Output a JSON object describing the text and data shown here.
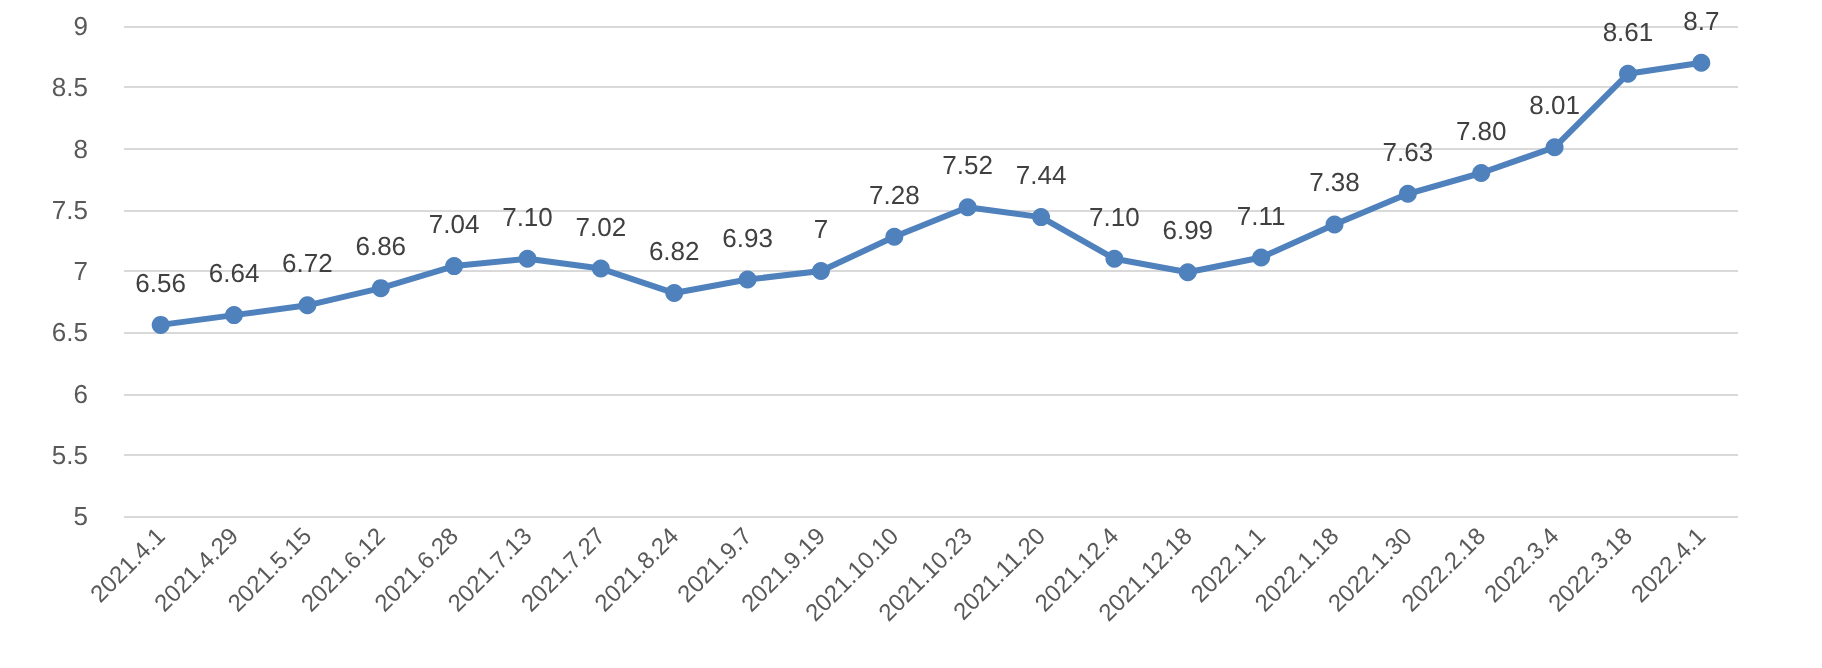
{
  "chart_data": {
    "type": "line",
    "categories": [
      "2021.4.1",
      "2021.4.29",
      "2021.5.15",
      "2021.6.12",
      "2021.6.28",
      "2021.7.13",
      "2021.7.27",
      "2021.8.24",
      "2021.9.7",
      "2021.9.19",
      "2021.10.10",
      "2021.10.23",
      "2021.11.20",
      "2021.12.4",
      "2021.12.18",
      "2022.1.1",
      "2022.1.18",
      "2022.1.30",
      "2022.2.18",
      "2022.3.4",
      "2022.3.18",
      "2022.4.1"
    ],
    "series": [
      {
        "color": "#4f81bd",
        "values": [
          6.56,
          6.64,
          6.72,
          6.86,
          7.04,
          7.1,
          7.02,
          6.82,
          6.93,
          7,
          7.28,
          7.52,
          7.44,
          7.1,
          6.99,
          7.11,
          7.38,
          7.63,
          7.8,
          8.01,
          8.61,
          8.7
        ],
        "value_labels": [
          "6.56",
          "6.64",
          "6.72",
          "6.86",
          "7.04",
          "7.10",
          "7.02",
          "6.82",
          "6.93",
          "7",
          "7.28",
          "7.52",
          "7.44",
          "7.10",
          "6.99",
          "7.11",
          "7.38",
          "7.63",
          "7.80",
          "8.01",
          "8.61",
          "8.7"
        ]
      }
    ],
    "ylim": [
      5,
      9
    ],
    "yticks": [
      5,
      5.5,
      6,
      6.5,
      7,
      7.5,
      8,
      8.5,
      9
    ],
    "grid": "y",
    "marker": "circle",
    "line_style": "solid"
  }
}
